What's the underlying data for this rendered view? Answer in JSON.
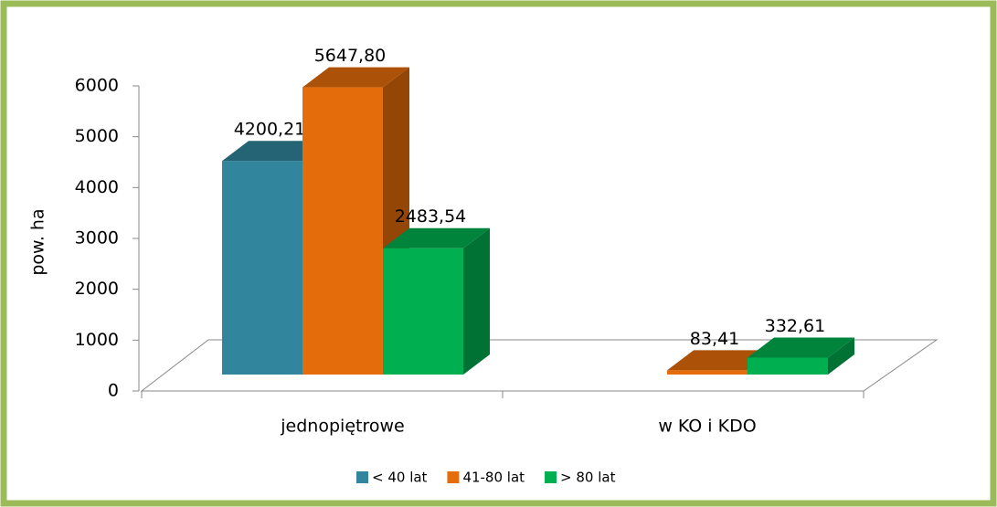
{
  "chart_data": {
    "type": "bar3d",
    "ylabel": "pow. ha",
    "categories": [
      "jednopiętrowe",
      "w KO i KDO"
    ],
    "series": [
      {
        "name": "< 40 lat",
        "color": "#31859c",
        "values": [
          4200.21,
          null
        ],
        "value_labels": [
          "4200,21",
          null
        ]
      },
      {
        "name": "41-80 lat",
        "color": "#e46c0a",
        "values": [
          5647.8,
          83.41
        ],
        "value_labels": [
          "5647,80",
          "83,41"
        ]
      },
      {
        "name": "> 80 lat",
        "color": "#00b050",
        "values": [
          2483.54,
          332.61
        ],
        "value_labels": [
          "2483,54",
          "332,61"
        ]
      }
    ],
    "ylim": [
      0,
      6000
    ],
    "yticks": [
      0,
      1000,
      2000,
      3000,
      4000,
      5000,
      6000
    ],
    "legend": "bottom"
  }
}
